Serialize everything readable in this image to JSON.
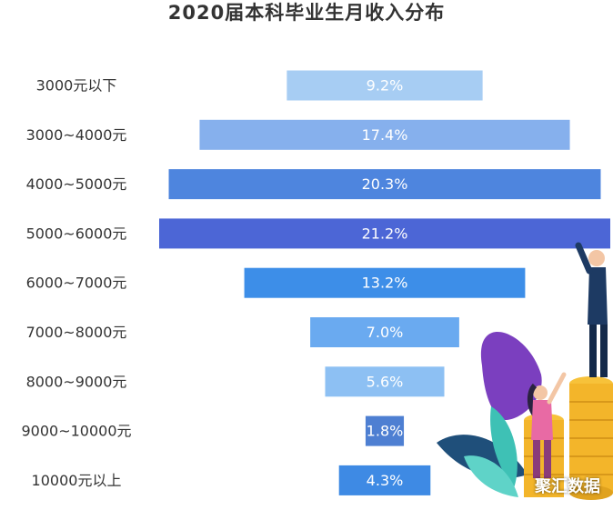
{
  "chart_data": {
    "type": "bar",
    "orientation": "horizontal-funnel",
    "title": "2020届本科毕业生月收入分布",
    "categories": [
      "3000元以下",
      "3000~4000元",
      "4000~5000元",
      "5000~6000元",
      "6000~7000元",
      "7000~8000元",
      "8000~9000元",
      "9000~10000元",
      "10000元以上"
    ],
    "values": [
      9.2,
      17.4,
      20.3,
      21.2,
      13.2,
      7.0,
      5.6,
      1.8,
      4.3
    ],
    "value_labels": [
      "9.2%",
      "17.4%",
      "20.3%",
      "21.2%",
      "13.2%",
      "7.0%",
      "5.6%",
      "1.8%",
      "4.3%"
    ],
    "colors": [
      "#a7cdf3",
      "#86b0ed",
      "#4e85de",
      "#4c66d6",
      "#3d8ee8",
      "#6aaaf0",
      "#8dc0f3",
      "#4e7fd2",
      "#3e8ae4"
    ],
    "xlabel": "",
    "ylabel": "",
    "grid": false,
    "legend": "none"
  },
  "watermark": "聚汇数据",
  "illustration": "decorative-people-with-coins"
}
